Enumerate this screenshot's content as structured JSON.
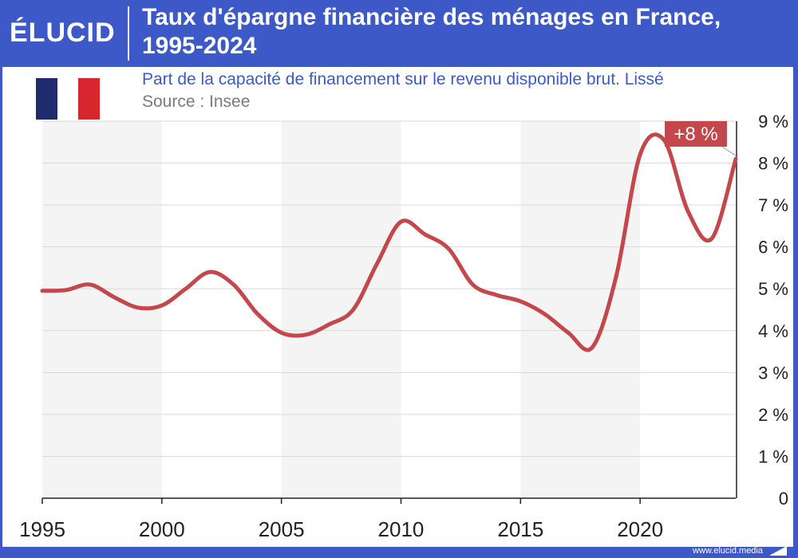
{
  "header": {
    "brand": "ÉLUCID",
    "title_line1": "Taux d'épargne financière des ménages en France,",
    "title_line2": "1995-2024"
  },
  "subtitle": "Part de la capacité de financement sur le revenu disponible brut. Lissé",
  "source": "Source : Insee",
  "footer": {
    "url": "www.elucid.media"
  },
  "flag": {
    "colors": [
      "#1f2b6e",
      "#ffffff",
      "#d7262e"
    ]
  },
  "colors": {
    "line": "#c4474b",
    "brand": "#3c59c7",
    "band": "#f4f4f4",
    "grid": "#d9d9d9"
  },
  "chart_data": {
    "type": "line",
    "title": "Taux d'épargne financière des ménages en France, 1995-2024",
    "subtitle": "Part de la capacité de financement sur le revenu disponible brut. Lissé",
    "xlim": [
      1995,
      2024
    ],
    "ylim": [
      0,
      9
    ],
    "x_ticks": [
      1995,
      2000,
      2005,
      2010,
      2015,
      2020
    ],
    "x_tick_labels": [
      "1995",
      "2000",
      "2005",
      "2010",
      "2015",
      "2020"
    ],
    "y_ticks": [
      0,
      1,
      2,
      3,
      4,
      5,
      6,
      7,
      8,
      9
    ],
    "y_tick_labels": [
      "0",
      "1 %",
      "2 %",
      "3 %",
      "4 %",
      "5 %",
      "6 %",
      "7 %",
      "8 %",
      "9 %"
    ],
    "grid": true,
    "series": [
      {
        "x": [
          1995,
          1996,
          1997,
          1998,
          1999,
          2000,
          2001,
          2002,
          2003,
          2004,
          2005,
          2006,
          2007,
          2008,
          2009,
          2010,
          2011,
          2012,
          2013,
          2014,
          2015,
          2016,
          2017,
          2018,
          2019,
          2020,
          2021,
          2022,
          2023,
          2024
        ],
        "y": [
          4.95,
          4.97,
          5.1,
          4.8,
          4.55,
          4.6,
          5.0,
          5.4,
          5.1,
          4.4,
          3.95,
          3.9,
          4.15,
          4.5,
          5.6,
          6.6,
          6.3,
          5.95,
          5.1,
          4.85,
          4.7,
          4.4,
          3.95,
          3.6,
          5.3,
          8.2,
          8.55,
          6.85,
          6.2,
          8.1
        ]
      }
    ],
    "annotations": [
      {
        "text": "+8 %",
        "x": 2024,
        "y": 8.1
      }
    ]
  }
}
